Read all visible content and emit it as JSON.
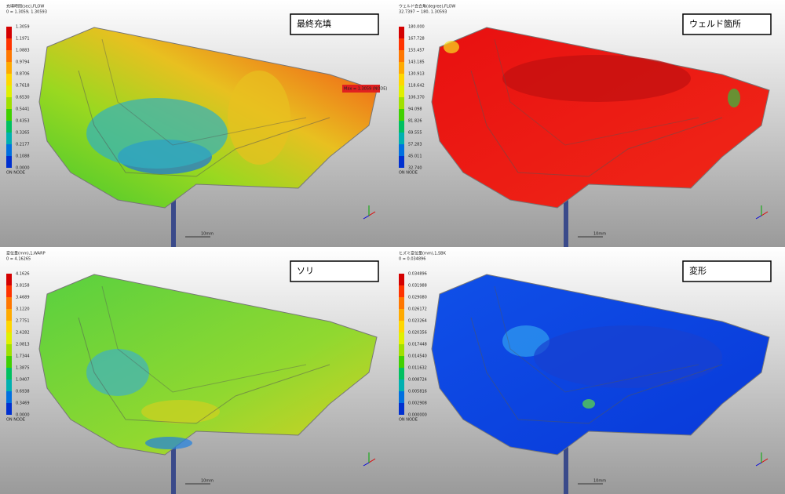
{
  "panels": [
    {
      "label": "最終充填",
      "legend_title": "充填時間(sec),FLOW",
      "legend_range": "0 = 1.3059, 1.30593",
      "legend_ticks": [
        "1.3059",
        "1.1971",
        "1.0883",
        "0.9794",
        "0.8706",
        "0.7618",
        "0.6530",
        "0.5441",
        "0.4353",
        "0.3265",
        "0.2177",
        "0.1088",
        "0.0000"
      ],
      "legend_footer": "ON NODE",
      "scale_label": "10mm",
      "max_label": "Max = 1.3059 (NODE)"
    },
    {
      "label": "ウェルド箇所",
      "legend_title": "ウェルド会合角(degree),FLOW",
      "legend_range": "32.7397 ~ 180, 1.30593",
      "legend_ticks": [
        "180.000",
        "167.728",
        "155.457",
        "143.185",
        "130.913",
        "118.642",
        "106.370",
        "94.098",
        "81.826",
        "69.555",
        "57.283",
        "45.011",
        "32.740"
      ],
      "legend_footer": "ON NODE",
      "scale_label": "10mm"
    },
    {
      "label": "ソリ",
      "legend_title": "変位量(mm),1,WARP",
      "legend_range": "0 = 4.16265",
      "legend_ticks": [
        "4.1626",
        "3.8158",
        "3.4689",
        "3.1220",
        "2.7751",
        "2.4282",
        "2.0813",
        "1.7344",
        "1.3875",
        "1.0407",
        "0.6938",
        "0.3469",
        "0.0000"
      ],
      "legend_footer": "ON NODE",
      "scale_label": "10mm"
    },
    {
      "label": "変形",
      "legend_title": "ヒズミ変位量(mm),1,SBK",
      "legend_range": "0 = 0.034896",
      "legend_ticks": [
        "0.034896",
        "0.031988",
        "0.029080",
        "0.026172",
        "0.023264",
        "0.020356",
        "0.017448",
        "0.014540",
        "0.011632",
        "0.008724",
        "0.005816",
        "0.002908",
        "0.000000"
      ],
      "legend_footer": "ON NODE",
      "scale_label": "10mm"
    }
  ]
}
